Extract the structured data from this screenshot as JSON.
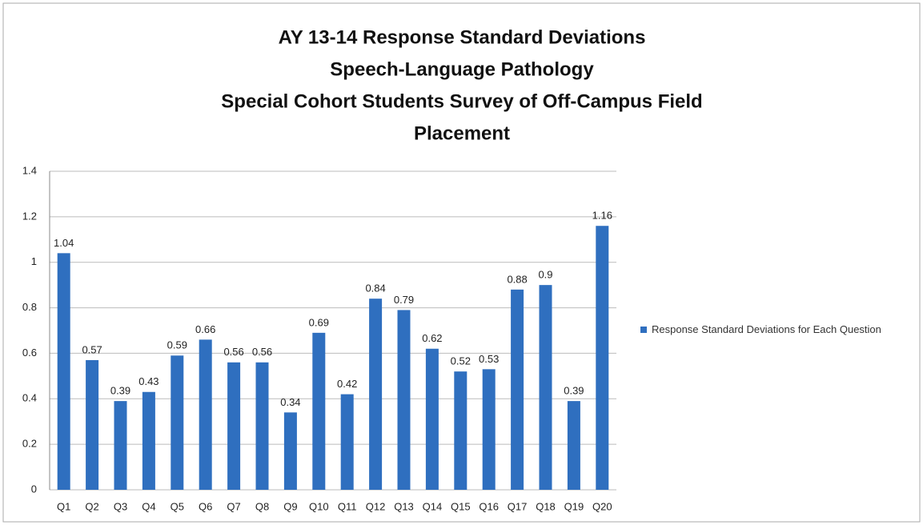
{
  "chart_data": {
    "type": "bar",
    "title": [
      "AY 13-14 Response Standard Deviations",
      "Speech-Language Pathology",
      "Special Cohort Students Survey of Off-Campus Field",
      "Placement"
    ],
    "categories": [
      "Q1",
      "Q2",
      "Q3",
      "Q4",
      "Q5",
      "Q6",
      "Q7",
      "Q8",
      "Q9",
      "Q10",
      "Q11",
      "Q12",
      "Q13",
      "Q14",
      "Q15",
      "Q16",
      "Q17",
      "Q18",
      "Q19",
      "Q20"
    ],
    "series": [
      {
        "name": "Response Standard Deviations for Each Question",
        "color": "#2f6fbf",
        "values": [
          1.04,
          0.57,
          0.39,
          0.43,
          0.59,
          0.66,
          0.56,
          0.56,
          0.34,
          0.69,
          0.42,
          0.84,
          0.79,
          0.62,
          0.52,
          0.53,
          0.88,
          0.9,
          0.39,
          1.16
        ]
      }
    ],
    "ylim": [
      0,
      1.4
    ],
    "yticks": [
      0,
      0.2,
      0.4,
      0.6,
      0.8,
      1,
      1.2,
      1.4
    ],
    "grid": true,
    "legend": "right"
  }
}
